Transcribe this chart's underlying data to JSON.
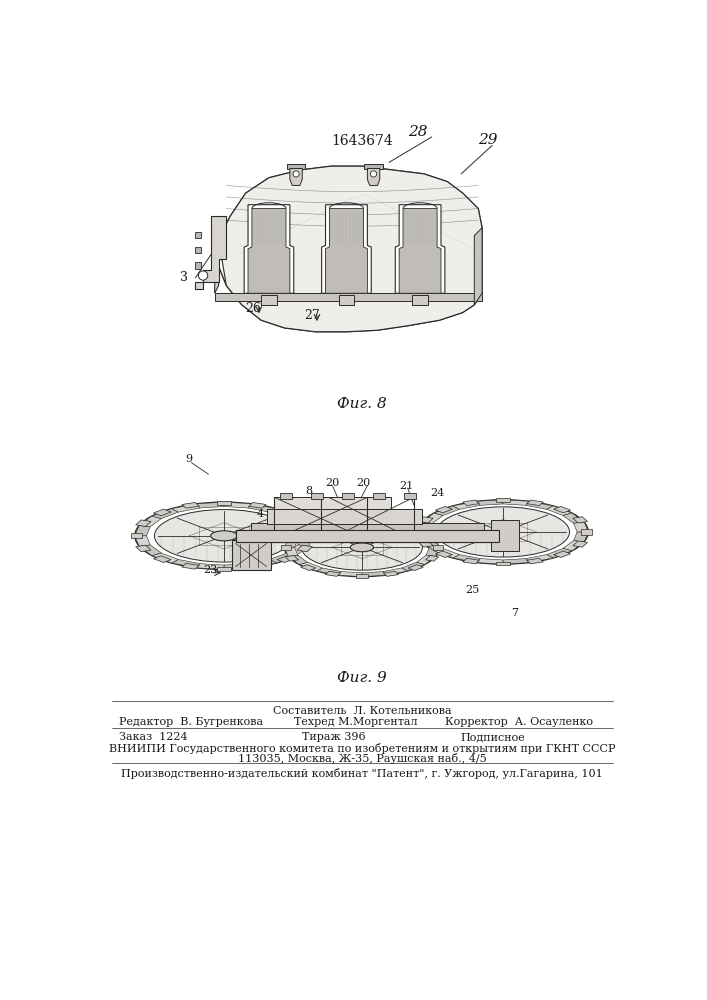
{
  "patent_number": "1643674",
  "background_color": "#ffffff",
  "fig8_caption": "Фиг. 8",
  "fig9_caption": "Фиг. 9",
  "footer_line1": "Составитель  Л. Котельникова",
  "footer_line2_left": "Редактор  В. Бугренкова",
  "footer_line2_mid": "Техред М.Моргентал",
  "footer_line2_right": "Корректор  А. Осауленко",
  "footer_line3_col1": "Заказ  1224",
  "footer_line3_col2": "Тираж 396",
  "footer_line3_col3": "Подписное",
  "footer_line4": "ВНИИПИ Государственного комитета по изобретениям и открытиям при ГКНТ СССР",
  "footer_line5": "113035, Москва, Ж-35, Раушская наб., 4/5",
  "footer_line6": "Производственно-издательский комбинат \"Патент\", г. Ужгород, ул.Гагарина, 101",
  "text_color": "#1a1a1a",
  "line_color": "#2a2a2a"
}
